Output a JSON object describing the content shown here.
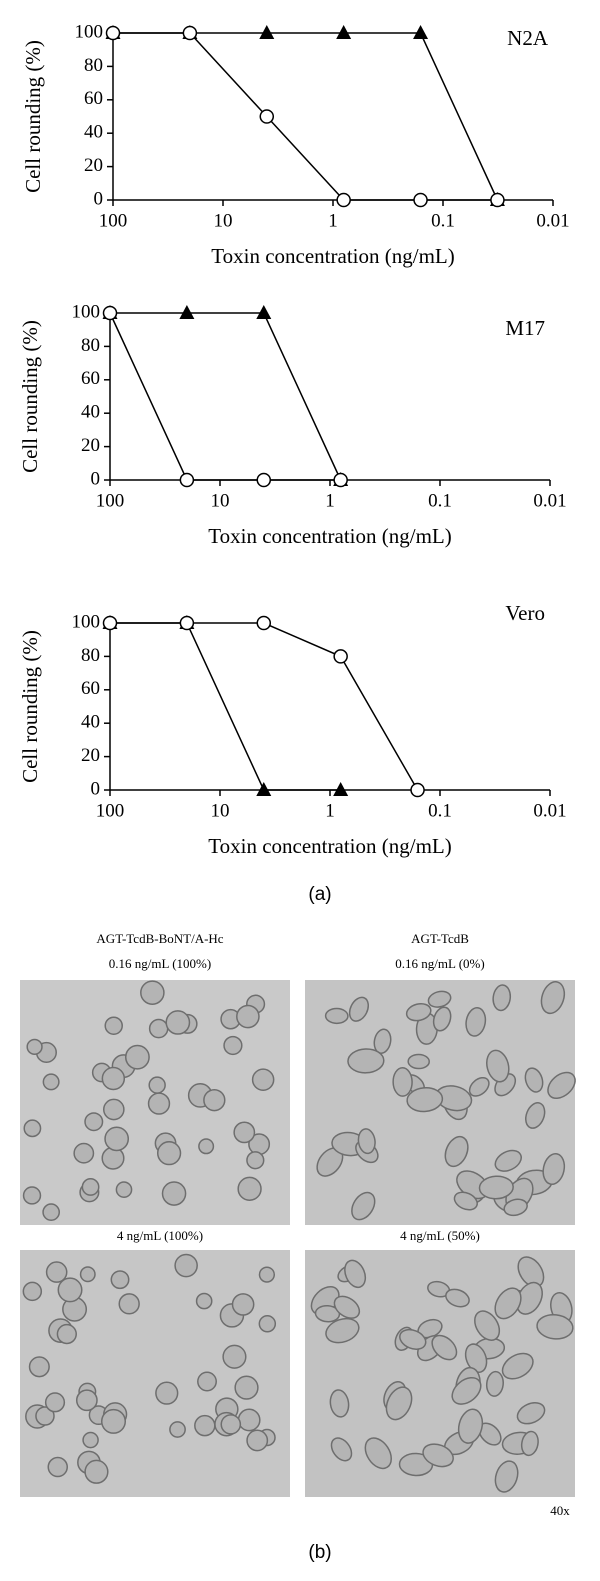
{
  "chart_data": [
    {
      "type": "line",
      "title": "N2A",
      "x_label": "Toxin concentration (ng/mL)",
      "y_label": "Cell rounding (%)",
      "log_x": true,
      "x": [
        100,
        20,
        4,
        0.8,
        0.16,
        0.032
      ],
      "xlim": [
        100,
        0.01
      ],
      "xticks": [
        100,
        10,
        1,
        0.1,
        0.01
      ],
      "ylim": [
        0,
        100
      ],
      "yticks": [
        0,
        20,
        40,
        60,
        80,
        100
      ],
      "series": [
        {
          "color": "#000000",
          "marker": "triangle",
          "values": [
            100,
            100,
            100,
            100,
            100,
            0
          ]
        },
        {
          "color": "#000000",
          "marker": "circle",
          "values": [
            100,
            100,
            50,
            0,
            0,
            0
          ]
        }
      ]
    },
    {
      "type": "line",
      "title": "M17",
      "x_label": "Toxin concentration (ng/mL)",
      "y_label": "Cell rounding (%)",
      "log_x": true,
      "x": [
        100,
        20,
        4,
        0.8
      ],
      "xlim": [
        100,
        0.01
      ],
      "xticks": [
        100,
        10,
        1,
        0.1,
        0.01
      ],
      "ylim": [
        0,
        100
      ],
      "yticks": [
        0,
        20,
        40,
        60,
        80,
        100
      ],
      "series": [
        {
          "color": "#000000",
          "marker": "triangle",
          "values": [
            100,
            100,
            100,
            0
          ]
        },
        {
          "color": "#000000",
          "marker": "circle",
          "values": [
            100,
            0,
            0,
            0
          ]
        }
      ]
    },
    {
      "type": "line",
      "title": "Vero",
      "x_label": "Toxin concentration (ng/mL)",
      "y_label": "Cell rounding (%)",
      "log_x": true,
      "x": [
        100,
        20,
        4,
        0.8,
        0.16
      ],
      "xlim": [
        100,
        0.01
      ],
      "xticks": [
        100,
        10,
        1,
        0.1,
        0.01
      ],
      "ylim": [
        0,
        100
      ],
      "yticks": [
        0,
        20,
        40,
        60,
        80,
        100
      ],
      "series": [
        {
          "color": "#000000",
          "marker": "triangle",
          "values": [
            100,
            100,
            0,
            0,
            null
          ]
        },
        {
          "color": "#000000",
          "marker": "circle",
          "values": [
            100,
            100,
            100,
            80,
            0
          ]
        }
      ]
    }
  ],
  "panel_labels": [
    "(a)",
    "(b)"
  ],
  "images": {
    "columns": [
      "AGT-TcdB-BoNT/A-Hc",
      "AGT-TcdB"
    ],
    "captions": [
      [
        "0.16 ng/mL (100%)",
        "0.16 ng/mL (0%)"
      ],
      [
        "4 ng/mL (100%)",
        "4 ng/mL (50%)"
      ]
    ],
    "magnification": "40x"
  }
}
